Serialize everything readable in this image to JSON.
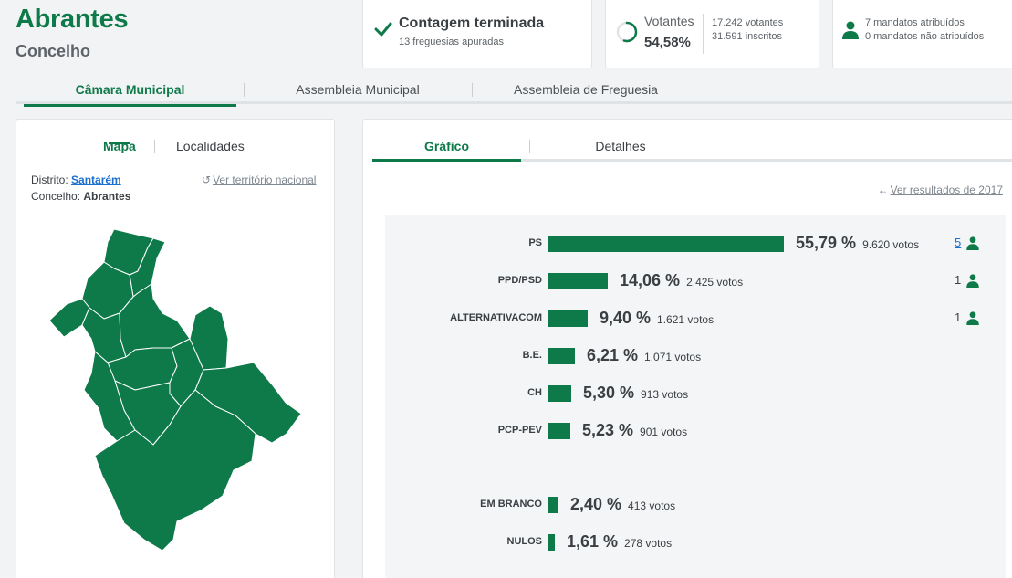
{
  "header": {
    "title": "Abrantes",
    "subtitle": "Concelho"
  },
  "summary": {
    "count_title": "Contagem terminada",
    "count_sub": "13 freguesias apuradas",
    "voters_label": "Votantes",
    "voters_pct": "54,58%",
    "voters_count": "17.242 votantes",
    "registered": "31.591 inscritos",
    "voters_fraction": 0.5458,
    "mandates_assigned": "7 mandatos atribuídos",
    "mandates_unassigned": "0 mandatos não atribuídos"
  },
  "tabs": [
    "Câmara Municipal",
    "Assembleia Municipal",
    "Assembleia de Freguesia"
  ],
  "map_panel": {
    "tabs": [
      "Mapa",
      "Localidades"
    ],
    "district_label": "Distrito:",
    "district": "Santarém",
    "county_label": "Concelho:",
    "county": "Abrantes",
    "national_link": "Ver território nacional"
  },
  "results_panel": {
    "tabs": [
      "Gráfico",
      "Detalhes"
    ],
    "prev_link": "Ver resultados de 2017"
  },
  "colors": {
    "accent": "#0e7a4a",
    "link": "#1a6fcf"
  },
  "chart_data": {
    "type": "bar",
    "orientation": "horizontal",
    "categories": [
      "PS",
      "PPD/PSD",
      "ALTERNATIVACOM",
      "B.E.",
      "CH",
      "PCP-PEV",
      "EM BRANCO",
      "NULOS"
    ],
    "values": [
      55.79,
      14.06,
      9.4,
      6.21,
      5.3,
      5.23,
      2.4,
      1.61
    ],
    "pct_labels": [
      "55,79 %",
      "14,06 %",
      "9,40 %",
      "6,21 %",
      "5,30 %",
      "5,23 %",
      "2,40 %",
      "1,61 %"
    ],
    "votes_labels": [
      "9.620 votos",
      "2.425 votos",
      "1.621 votos",
      "1.071 votos",
      "913 votos",
      "901 votos",
      "413 votos",
      "278 votos"
    ],
    "seats": [
      "5",
      "1",
      "1",
      "",
      "",
      "",
      "",
      ""
    ]
  }
}
